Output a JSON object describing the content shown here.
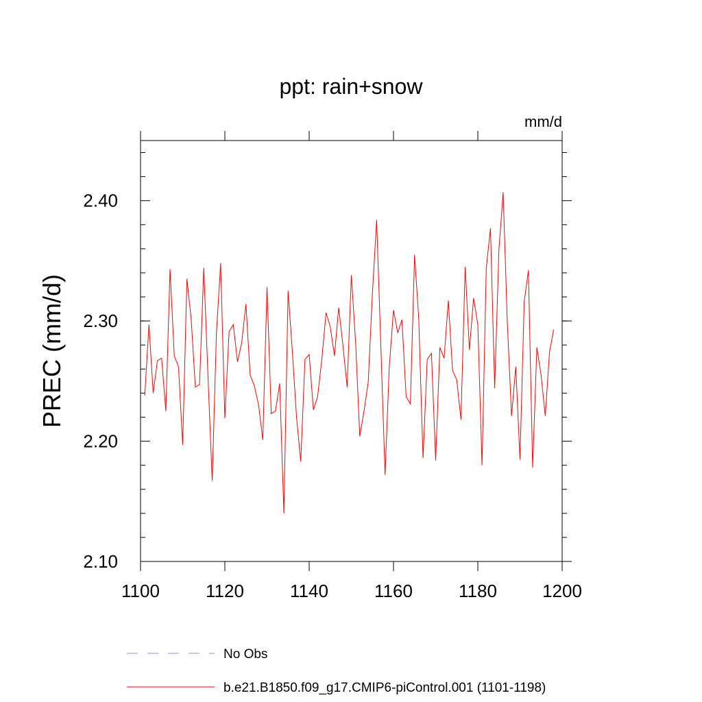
{
  "chart_data": {
    "type": "line",
    "title": "ppt: rain+snow",
    "units": "mm/d",
    "ylabel": "PREC  (mm/d)",
    "xlabel": "",
    "xlim": [
      1100,
      1200
    ],
    "ylim": [
      2.1,
      2.45
    ],
    "xticks": [
      "1100",
      "1120",
      "1140",
      "1160",
      "1180",
      "1200"
    ],
    "yticks": [
      "2.10",
      "2.20",
      "2.30",
      "2.40"
    ],
    "grid": false,
    "legend_placement": "bottom",
    "series": [
      {
        "name": "b.e21.B1850.f09_g17.CMIP6-piControl.001 (1101-1198)",
        "color": "#ff0000",
        "style": "solid",
        "x_start": 1101,
        "values": [
          2.238,
          2.297,
          2.24,
          2.267,
          2.269,
          2.225,
          2.343,
          2.271,
          2.262,
          2.197,
          2.335,
          2.302,
          2.245,
          2.247,
          2.344,
          2.254,
          2.167,
          2.29,
          2.348,
          2.219,
          2.291,
          2.297,
          2.266,
          2.282,
          2.314,
          2.255,
          2.246,
          2.23,
          2.201,
          2.328,
          2.223,
          2.225,
          2.248,
          2.14,
          2.325,
          2.275,
          2.22,
          2.183,
          2.268,
          2.272,
          2.226,
          2.237,
          2.268,
          2.307,
          2.295,
          2.271,
          2.311,
          2.28,
          2.245,
          2.338,
          2.283,
          2.204,
          2.225,
          2.249,
          2.323,
          2.384,
          2.279,
          2.172,
          2.262,
          2.309,
          2.29,
          2.301,
          2.237,
          2.231,
          2.355,
          2.301,
          2.186,
          2.268,
          2.273,
          2.184,
          2.278,
          2.269,
          2.317,
          2.259,
          2.251,
          2.218,
          2.345,
          2.276,
          2.319,
          2.297,
          2.18,
          2.344,
          2.377,
          2.244,
          2.359,
          2.407,
          2.298,
          2.221,
          2.262,
          2.185,
          2.316,
          2.342,
          2.178,
          2.278,
          2.255,
          2.221,
          2.274,
          2.293
        ]
      },
      {
        "name": "No Obs",
        "color": "#9a90c8",
        "style": "dashed",
        "values": []
      }
    ]
  }
}
